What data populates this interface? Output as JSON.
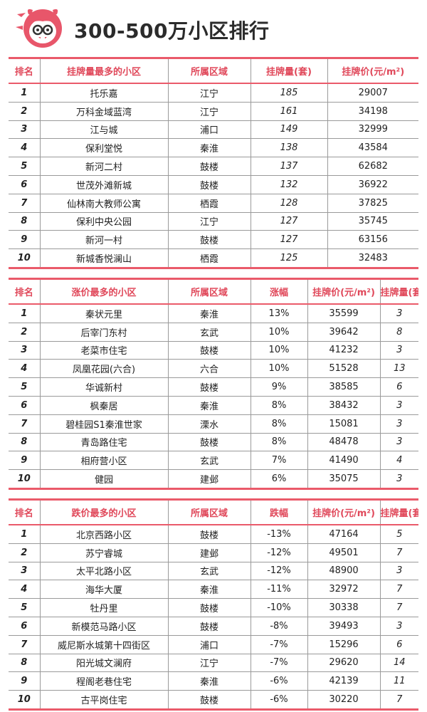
{
  "header": {
    "title": "300-500万小区排行"
  },
  "tables": [
    {
      "headers": [
        "排名",
        "挂牌量最多的小区",
        "所属区域",
        "挂牌量(套)",
        "挂牌价(元/m²)"
      ],
      "rows": [
        [
          "1",
          "托乐嘉",
          "江宁",
          "185",
          "29007"
        ],
        [
          "2",
          "万科金域蓝湾",
          "江宁",
          "161",
          "34198"
        ],
        [
          "3",
          "江与城",
          "浦口",
          "149",
          "32999"
        ],
        [
          "4",
          "保利堂悦",
          "秦淮",
          "138",
          "43584"
        ],
        [
          "5",
          "新河二村",
          "鼓楼",
          "137",
          "62682"
        ],
        [
          "6",
          "世茂外滩新城",
          "鼓楼",
          "132",
          "36922"
        ],
        [
          "7",
          "仙林南大教师公寓",
          "栖霞",
          "128",
          "37825"
        ],
        [
          "8",
          "保利中央公园",
          "江宁",
          "127",
          "35745"
        ],
        [
          "9",
          "新河一村",
          "鼓楼",
          "127",
          "63156"
        ],
        [
          "10",
          "新城香悦澜山",
          "栖霞",
          "125",
          "32483"
        ]
      ]
    },
    {
      "headers": [
        "排名",
        "涨价最多的小区",
        "所属区域",
        "涨幅",
        "挂牌价(元/m²)",
        "挂牌量(套)"
      ],
      "rows": [
        [
          "1",
          "秦状元里",
          "秦淮",
          "13%",
          "35599",
          "3"
        ],
        [
          "2",
          "后宰门东村",
          "玄武",
          "10%",
          "39642",
          "8"
        ],
        [
          "3",
          "老菜市住宅",
          "鼓楼",
          "10%",
          "41232",
          "3"
        ],
        [
          "4",
          "凤凰花园(六合)",
          "六合",
          "10%",
          "51528",
          "13"
        ],
        [
          "5",
          "华诚新村",
          "鼓楼",
          "9%",
          "38585",
          "6"
        ],
        [
          "6",
          "枫秦居",
          "秦淮",
          "8%",
          "38432",
          "3"
        ],
        [
          "7",
          "碧桂园S1秦淮世家",
          "溧水",
          "8%",
          "15081",
          "3"
        ],
        [
          "8",
          "青岛路住宅",
          "鼓楼",
          "8%",
          "48478",
          "3"
        ],
        [
          "9",
          "相府营小区",
          "玄武",
          "7%",
          "41490",
          "4"
        ],
        [
          "10",
          "健园",
          "建邺",
          "6%",
          "35075",
          "3"
        ]
      ]
    },
    {
      "headers": [
        "排名",
        "跌价最多的小区",
        "所属区域",
        "跌幅",
        "挂牌价(元/m²)",
        "挂牌量(套)"
      ],
      "rows": [
        [
          "1",
          "北京西路小区",
          "鼓楼",
          "-13%",
          "47164",
          "5"
        ],
        [
          "2",
          "苏宁睿城",
          "建邺",
          "-12%",
          "49501",
          "7"
        ],
        [
          "3",
          "太平北路小区",
          "玄武",
          "-12%",
          "48900",
          "3"
        ],
        [
          "4",
          "海华大厦",
          "秦淮",
          "-11%",
          "32972",
          "7"
        ],
        [
          "5",
          "牡丹里",
          "鼓楼",
          "-10%",
          "30338",
          "7"
        ],
        [
          "6",
          "新模范马路小区",
          "鼓楼",
          "-8%",
          "39493",
          "3"
        ],
        [
          "7",
          "威尼斯水城第十四街区",
          "浦口",
          "-7%",
          "15296",
          "6"
        ],
        [
          "8",
          "阳光城文澜府",
          "江宁",
          "-7%",
          "29620",
          "14"
        ],
        [
          "9",
          "程阁老巷住宅",
          "秦淮",
          "-6%",
          "42139",
          "11"
        ],
        [
          "10",
          "古平岗住宅",
          "鼓楼",
          "-6%",
          "30220",
          "7"
        ]
      ]
    }
  ]
}
